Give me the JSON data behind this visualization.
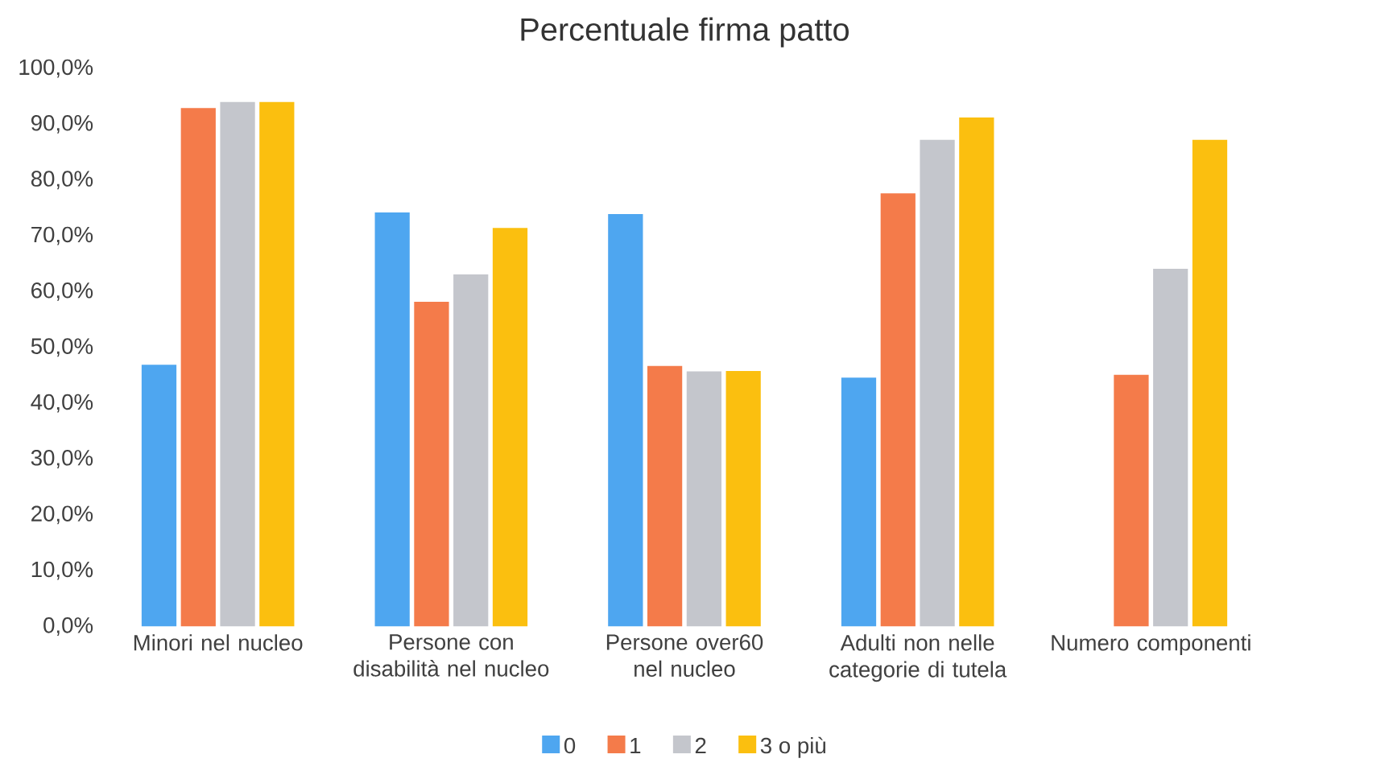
{
  "chart_data": {
    "type": "bar",
    "title": "Percentuale firma patto",
    "categories": [
      "Minori nel nucleo",
      "Persone con disabilità nel nucleo",
      "Persone over60 nel nucleo",
      "Adulti non nelle categorie di tutela",
      "Numero componenti"
    ],
    "series": [
      {
        "name": "0",
        "color": "#4ea6f0",
        "values": [
          46.9,
          74.2,
          73.9,
          44.6,
          null
        ]
      },
      {
        "name": "1",
        "color": "#f47b4a",
        "values": [
          92.9,
          58.2,
          46.7,
          77.6,
          45.1
        ]
      },
      {
        "name": "2",
        "color": "#c4c6cc",
        "values": [
          94.0,
          63.1,
          45.7,
          87.2,
          64.1
        ]
      },
      {
        "name": "3 o più",
        "color": "#fbbf0f",
        "values": [
          94.0,
          71.4,
          45.8,
          91.2,
          87.2
        ]
      }
    ],
    "ylim": [
      0,
      100
    ],
    "yticks": [
      {
        "value": 0,
        "label": "0,0%"
      },
      {
        "value": 10,
        "label": "10,0%"
      },
      {
        "value": 20,
        "label": "20,0%"
      },
      {
        "value": 30,
        "label": "30,0%"
      },
      {
        "value": 40,
        "label": "40,0%"
      },
      {
        "value": 50,
        "label": "50,0%"
      },
      {
        "value": 60,
        "label": "60,0%"
      },
      {
        "value": 70,
        "label": "70,0%"
      },
      {
        "value": 80,
        "label": "80,0%"
      },
      {
        "value": 90,
        "label": "90,0%"
      },
      {
        "value": 100,
        "label": "100,0%"
      }
    ],
    "grid": false,
    "legend": "bottom"
  }
}
